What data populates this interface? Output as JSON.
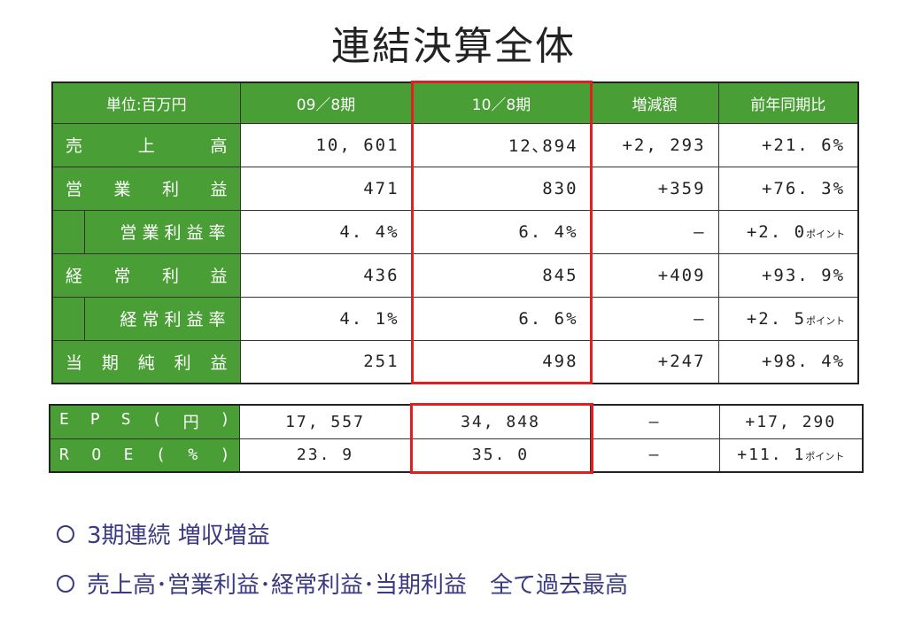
{
  "title": "連結決算全体",
  "main_table": {
    "headers": [
      "単位:百万円",
      "09／8期",
      "10／8期",
      "増減額",
      "前年同期比"
    ],
    "rows": [
      {
        "label": [
          "売",
          "上",
          "高"
        ],
        "v09": "10, 601",
        "v10": "12､894",
        "diff": "+2, 293",
        "yoy": "+21. 6%",
        "yoy_suffix": ""
      },
      {
        "label": [
          "営",
          "業",
          "利",
          "益"
        ],
        "v09": "471",
        "v10": "830",
        "diff": "+359",
        "yoy": "+76. 3%",
        "yoy_suffix": ""
      },
      {
        "label_sub": "営業利益率",
        "v09": "4. 4%",
        "v10": "6. 4%",
        "diff": "—",
        "yoy": "+2. 0",
        "yoy_suffix": "ポイント"
      },
      {
        "label": [
          "経",
          "常",
          "利",
          "益"
        ],
        "v09": "436",
        "v10": "845",
        "diff": "+409",
        "yoy": "+93. 9%",
        "yoy_suffix": ""
      },
      {
        "label_sub": "経常利益率",
        "v09": "4. 1%",
        "v10": "6. 6%",
        "diff": "—",
        "yoy": "+2. 5",
        "yoy_suffix": "ポイント"
      },
      {
        "label": [
          "当",
          "期",
          "純",
          "利",
          "益"
        ],
        "v09": "251",
        "v10": "498",
        "diff": "+247",
        "yoy": "+98. 4%",
        "yoy_suffix": ""
      }
    ]
  },
  "eps_table": {
    "rows": [
      {
        "label": [
          "E",
          "P",
          "S",
          "(",
          "円",
          ")"
        ],
        "v09": "17, 557",
        "v10": "34, 848",
        "diff": "—",
        "yoy": "+17, 290",
        "yoy_suffix": ""
      },
      {
        "label": [
          "R",
          "O",
          "E",
          "(",
          "%",
          ")"
        ],
        "v09": "23. 9",
        "v10": "35. 0",
        "diff": "—",
        "yoy": "+11. 1",
        "yoy_suffix": "ポイント"
      }
    ]
  },
  "bullets": [
    "3期連続 増収増益",
    "売上高･営業利益･経常利益･当期利益　全て過去最高"
  ],
  "colors": {
    "header_green": "#4a9e36",
    "highlight_red": "#e02020",
    "bullet_text": "#3a3a82"
  }
}
